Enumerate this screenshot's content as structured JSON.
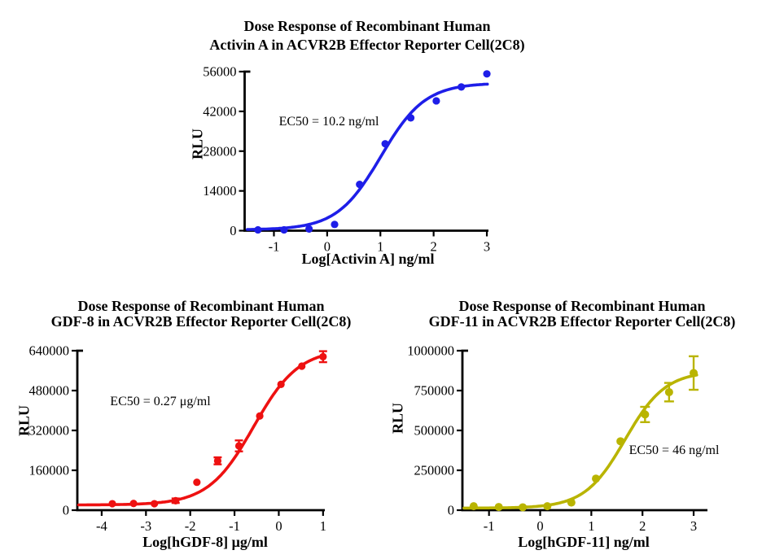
{
  "page": {
    "background": "#ffffff"
  },
  "chart_data": [
    {
      "id": "activin-a",
      "type": "scatter",
      "title": [
        "Dose Response of Recombinant Human",
        "Activin A in ACVR2B Effector Reporter Cell(2C8)"
      ],
      "annotation": "EC50 = 10.2 ng/ml",
      "xlabel": "Log[Activin A] ng/ml",
      "ylabel": "RLU",
      "color": "#1e1ee8",
      "x": [
        -1.3,
        -0.81,
        -0.34,
        0.14,
        0.61,
        1.09,
        1.57,
        2.05,
        2.52,
        3.0
      ],
      "y": [
        300,
        300,
        600,
        2200,
        16300,
        30600,
        39700,
        45700,
        50600,
        55200
      ],
      "yerr": [
        0,
        0,
        0,
        0,
        0,
        0,
        0,
        0,
        0,
        0
      ],
      "xticks": [
        -1,
        0,
        1,
        2,
        3
      ],
      "yticks": [
        0,
        14000,
        28000,
        42000,
        56000
      ],
      "xlim": [
        -1.55,
        3.03
      ],
      "ylim": [
        0,
        56000
      ],
      "curve": {
        "bottom": 300,
        "top": 52000,
        "logEC50": 1.01,
        "hill": 1.05
      },
      "grid": false,
      "legend": "none"
    },
    {
      "id": "gdf-8",
      "type": "scatter",
      "title": [
        "Dose Response of Recombinant Human",
        "GDF-8 in ACVR2B Effector Reporter Cell(2C8)"
      ],
      "annotation": "EC50 = 0.27 μg/ml",
      "xlabel": "Log[hGDF-8] μg/ml",
      "ylabel": "RLU",
      "color": "#ee1111",
      "x": [
        -3.76,
        -3.28,
        -2.81,
        -2.33,
        -1.85,
        -1.38,
        -0.9,
        -0.43,
        0.05,
        0.52,
        1.0
      ],
      "y": [
        26000,
        27000,
        26000,
        38000,
        112000,
        198000,
        258000,
        378000,
        505000,
        578000,
        616000
      ],
      "yerr": [
        0,
        0,
        0,
        9000,
        0,
        14000,
        22000,
        0,
        0,
        0,
        22000
      ],
      "xticks": [
        -4,
        -3,
        -2,
        -1,
        0,
        1
      ],
      "yticks": [
        0,
        160000,
        320000,
        480000,
        640000
      ],
      "xlim": [
        -4.55,
        1.04
      ],
      "ylim": [
        0,
        640000
      ],
      "curve": {
        "bottom": 21000,
        "top": 648000,
        "logEC50": -0.57,
        "hill": 0.85
      },
      "grid": false,
      "legend": "none"
    },
    {
      "id": "gdf-11",
      "type": "scatter",
      "title": [
        "Dose Response of Recombinant Human",
        "GDF-11 in ACVR2B Effector Reporter Cell(2C8)"
      ],
      "annotation": "EC50 = 46 ng/ml",
      "xlabel": "Log[hGDF-11] ng/ml",
      "ylabel": "RLU",
      "color": "#b9b400",
      "x": [
        -1.3,
        -0.81,
        -0.34,
        0.14,
        0.61,
        1.09,
        1.57,
        2.05,
        2.52,
        3.0
      ],
      "y": [
        25000,
        20000,
        18000,
        25000,
        48000,
        198000,
        432000,
        600000,
        740000,
        860000
      ],
      "yerr": [
        0,
        0,
        0,
        0,
        0,
        0,
        0,
        48000,
        58000,
        105000
      ],
      "xticks": [
        -1,
        0,
        1,
        2,
        3
      ],
      "yticks": [
        0,
        250000,
        500000,
        750000,
        1000000
      ],
      "xlim": [
        -1.52,
        3.27
      ],
      "ylim": [
        0,
        1000000
      ],
      "curve": {
        "bottom": 13000,
        "top": 872000,
        "logEC50": 1.66,
        "hill": 1.1
      },
      "grid": false,
      "legend": "none"
    }
  ]
}
